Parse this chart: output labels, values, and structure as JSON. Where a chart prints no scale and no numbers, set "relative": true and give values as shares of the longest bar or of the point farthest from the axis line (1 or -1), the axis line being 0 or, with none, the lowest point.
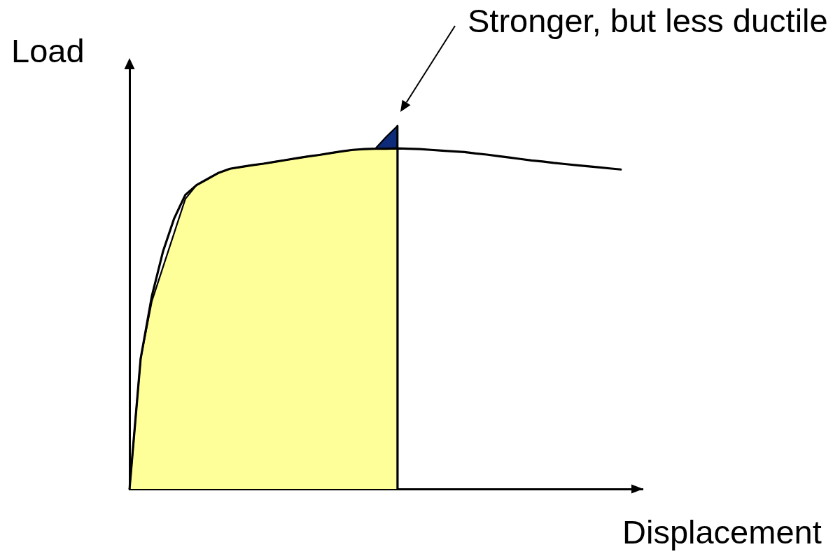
{
  "chart_data": {
    "type": "line",
    "relative": true,
    "xlabel": "Displacement",
    "ylabel": "Load",
    "grid": false,
    "legend": false,
    "marker": "none",
    "annotations": [
      "Stronger, but less ductile"
    ],
    "categories": [
      null,
      null,
      null,
      null,
      null,
      null,
      null,
      null,
      null,
      null,
      null,
      null,
      null,
      null,
      null,
      null,
      null,
      null,
      null,
      null,
      null,
      null,
      null,
      null,
      null,
      null,
      null,
      null,
      null,
      null,
      null,
      null,
      null,
      null,
      null,
      null,
      null,
      null,
      null,
      null,
      null,
      null,
      null,
      null,
      null,
      null,
      null
    ],
    "series": [
      {
        "type": "area",
        "color": "#ffff99",
        "values": [
          0,
          0.359,
          0.517,
          0.611,
          0.705,
          0.799,
          0.837,
          0.854,
          0.871,
          0.882,
          0.887,
          0.892,
          0.896,
          0.901,
          0.906,
          0.911,
          0.916,
          0.92,
          0.925,
          0.93,
          0.934,
          0.936,
          0.937,
          0.937,
          0.938,
          null,
          null,
          null,
          null,
          null,
          null,
          null,
          null,
          null,
          null,
          null,
          null,
          null,
          null,
          null,
          null,
          null,
          null,
          null,
          null,
          null,
          null
        ]
      },
      {
        "color": "#000000",
        "values": [
          0,
          0.359,
          0.531,
          0.654,
          0.745,
          0.81,
          0.837,
          0.854,
          0.871,
          0.882,
          0.887,
          0.892,
          0.896,
          0.901,
          0.906,
          0.911,
          0.916,
          0.92,
          0.925,
          0.93,
          0.934,
          0.936,
          0.937,
          0.937,
          0.938,
          0.937,
          0.936,
          0.934,
          0.932,
          0.93,
          0.928,
          0.924,
          0.921,
          0.917,
          0.913,
          0.909,
          0.905,
          0.902,
          0.898,
          0.895,
          0.892,
          0.889,
          0.886,
          0.883,
          0.88,
          null,
          null
        ]
      },
      {
        "type": "area",
        "color": "#0d2b78",
        "values": [
          null,
          null,
          null,
          null,
          null,
          null,
          null,
          null,
          null,
          null,
          null,
          null,
          null,
          null,
          null,
          null,
          null,
          null,
          null,
          null,
          null,
          null,
          0.937,
          0.97,
          1,
          null,
          null,
          null,
          null,
          null,
          null,
          null,
          null,
          null,
          null,
          null,
          null,
          null,
          null,
          null,
          null,
          null,
          null,
          null,
          null,
          null,
          null
        ]
      }
    ]
  }
}
